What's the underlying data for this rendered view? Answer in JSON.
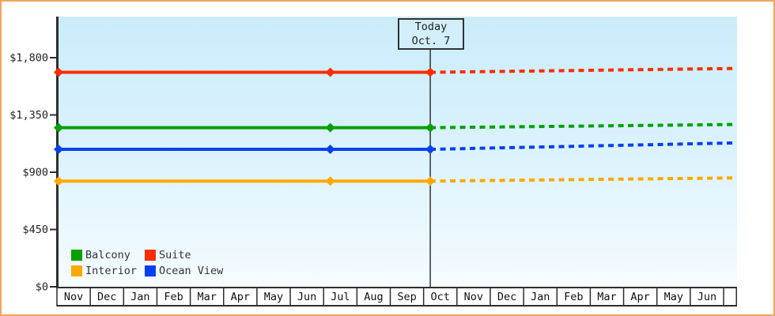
{
  "window": {
    "background": "#ffffff",
    "frame_color": "#f0a55c"
  },
  "chart_data": {
    "type": "line",
    "title": "",
    "xlabel": "",
    "ylabel": "",
    "grid": false,
    "today_marker": {
      "line1": "Today",
      "line2": "Oct. 7",
      "month_offset": 11.2
    },
    "x_axis": {
      "labels": [
        "Nov",
        "Dec",
        "Jan",
        "Feb",
        "Mar",
        "Apr",
        "May",
        "Jun",
        "Jul",
        "Aug",
        "Sep",
        "Oct",
        "Nov",
        "Dec",
        "Jan",
        "Feb",
        "Mar",
        "Apr",
        "May",
        "Jun"
      ]
    },
    "y_axis": {
      "tick_labels": [
        "$0",
        "$450",
        "$900",
        "$1,350",
        "$1,800"
      ],
      "tick_values": [
        0,
        450,
        900,
        1350,
        1800
      ],
      "ylim": [
        0,
        2120
      ]
    },
    "series": [
      {
        "name": "Suite",
        "color": "#fb2d00",
        "history": {
          "month_offsets": [
            0,
            8.2,
            11.2
          ],
          "prices": [
            1685,
            1685,
            1685
          ]
        },
        "forecast": {
          "month_offsets": [
            11.2,
            20.3
          ],
          "prices": [
            1685,
            1715
          ],
          "style": "dashed"
        }
      },
      {
        "name": "Balcony",
        "color": "#07a007",
        "history": {
          "month_offsets": [
            0,
            8.2,
            11.2
          ],
          "prices": [
            1250,
            1250,
            1250
          ]
        },
        "forecast": {
          "month_offsets": [
            11.2,
            20.3
          ],
          "prices": [
            1250,
            1275
          ],
          "style": "dashed"
        }
      },
      {
        "name": "Ocean View",
        "color": "#0840f0",
        "history": {
          "month_offsets": [
            0,
            8.2,
            11.2
          ],
          "prices": [
            1080,
            1080,
            1080
          ]
        },
        "forecast": {
          "month_offsets": [
            11.2,
            20.3
          ],
          "prices": [
            1080,
            1130
          ],
          "style": "dashed"
        }
      },
      {
        "name": "Interior",
        "color": "#ffa800",
        "history": {
          "month_offsets": [
            0,
            8.2,
            11.2
          ],
          "prices": [
            830,
            830,
            830
          ]
        },
        "forecast": {
          "month_offsets": [
            11.2,
            20.3
          ],
          "prices": [
            830,
            855
          ],
          "style": "dashed"
        }
      }
    ],
    "legend": {
      "position": "bottom-left",
      "items": [
        {
          "label": "Balcony",
          "color": "#07a007"
        },
        {
          "label": "Suite",
          "color": "#fb2d00"
        },
        {
          "label": "Interior",
          "color": "#ffa800"
        },
        {
          "label": "Ocean View",
          "color": "#0840f0"
        }
      ]
    }
  }
}
